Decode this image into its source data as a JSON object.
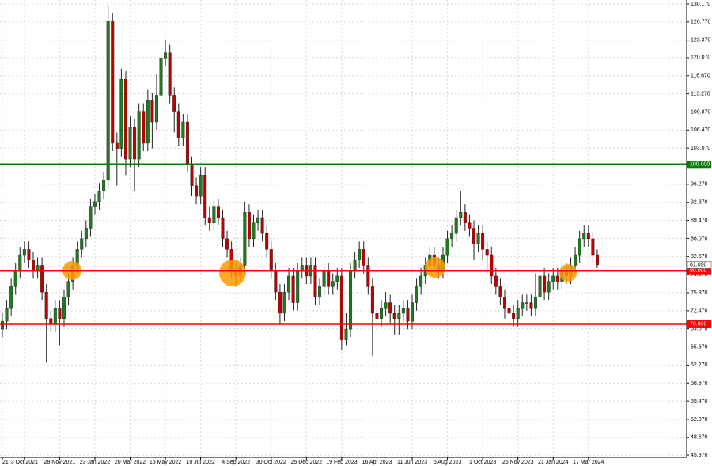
{
  "chart_data": {
    "type": "candlestick",
    "ylim": [
      45.37,
      130.17
    ],
    "yticks": [
      {
        "value": 130.17,
        "label": "130.170"
      },
      {
        "value": 126.77,
        "label": "126.770"
      },
      {
        "value": 123.37,
        "label": "123.370"
      },
      {
        "value": 120.07,
        "label": "120.070"
      },
      {
        "value": 116.67,
        "label": "116.670"
      },
      {
        "value": 113.27,
        "label": "113.270"
      },
      {
        "value": 109.87,
        "label": "109.870"
      },
      {
        "value": 106.47,
        "label": "106.470"
      },
      {
        "value": 103.07,
        "label": "103.070"
      },
      {
        "value": 96.27,
        "label": "96.270"
      },
      {
        "value": 92.87,
        "label": "92.870"
      },
      {
        "value": 89.47,
        "label": "89.470"
      },
      {
        "value": 86.07,
        "label": "86.070"
      },
      {
        "value": 82.67,
        "label": "82.670"
      },
      {
        "value": 79.27,
        "label": "79.270"
      },
      {
        "value": 75.87,
        "label": "75.870"
      },
      {
        "value": 72.47,
        "label": "72.470"
      },
      {
        "value": 69.07,
        "label": "69.070"
      },
      {
        "value": 65.67,
        "label": "65.670"
      },
      {
        "value": 62.27,
        "label": "62.270"
      },
      {
        "value": 58.87,
        "label": "58.870"
      },
      {
        "value": 55.47,
        "label": "55.470"
      },
      {
        "value": 52.07,
        "label": "52.070"
      },
      {
        "value": 48.67,
        "label": "48.670"
      },
      {
        "value": 45.37,
        "label": "45.370"
      }
    ],
    "grid": true,
    "up_color": "#1f7a1f",
    "down_color": "#c00000",
    "categories": [
      "21",
      null,
      null,
      null,
      null,
      "3 Oct 2021",
      null,
      null,
      null,
      null,
      null,
      null,
      null,
      "28 Nov 2021",
      null,
      null,
      null,
      null,
      null,
      null,
      null,
      "23 Jan 2022",
      null,
      null,
      null,
      null,
      null,
      null,
      null,
      "20 Mar 2022",
      null,
      null,
      null,
      null,
      null,
      null,
      null,
      "15 May 2022",
      null,
      null,
      null,
      null,
      null,
      null,
      null,
      "10 Jul 2022",
      null,
      null,
      null,
      null,
      null,
      null,
      null,
      "4 Sep 2022",
      null,
      null,
      null,
      null,
      null,
      null,
      null,
      "30 Oct 2022",
      null,
      null,
      null,
      null,
      null,
      null,
      null,
      "25 Dec 2022",
      null,
      null,
      null,
      null,
      null,
      null,
      null,
      "19 Feb 2023",
      null,
      null,
      null,
      null,
      null,
      null,
      null,
      "16 Apr 2023",
      null,
      null,
      null,
      null,
      null,
      null,
      null,
      "11 Jun 2023",
      null,
      null,
      null,
      null,
      null,
      null,
      null,
      "6 Aug 2023",
      null,
      null,
      null,
      null,
      null,
      null,
      null,
      "1 Oct 2023",
      null,
      null,
      null,
      null,
      null,
      null,
      null,
      "26 Nov 2023",
      null,
      null,
      null,
      null,
      null,
      null,
      null,
      "21 Jan 2024",
      null,
      null,
      null,
      null,
      null,
      null,
      null,
      "17 Mar 2024",
      null,
      null
    ],
    "open": [
      69,
      70.5,
      73,
      77,
      80,
      83,
      84,
      82,
      80,
      81,
      76,
      71,
      70,
      73,
      71,
      75,
      78,
      81,
      84,
      86,
      88,
      92,
      93,
      95,
      97,
      127,
      104,
      103,
      116,
      101,
      107,
      101,
      110,
      104,
      112,
      108,
      113,
      120,
      121,
      113,
      110,
      105,
      108,
      100,
      96,
      94,
      98,
      90,
      89,
      92,
      90,
      86,
      84,
      80,
      79,
      81,
      91,
      86,
      89,
      90,
      87,
      84,
      80,
      76,
      72,
      76,
      79,
      74,
      80,
      81,
      79,
      81,
      75,
      77,
      80,
      77,
      78,
      79,
      67,
      69,
      80,
      82,
      84,
      81,
      77,
      72,
      71,
      73,
      74,
      72,
      71,
      72,
      73,
      70.5,
      74,
      77,
      79,
      81,
      83,
      81,
      80,
      83,
      86,
      87,
      90,
      91,
      89,
      88,
      85,
      87,
      84,
      83,
      79,
      77,
      75,
      73,
      72,
      71,
      73,
      74,
      74,
      73,
      75,
      79,
      76,
      78,
      79,
      78,
      80,
      79,
      81,
      83,
      86,
      87,
      86,
      83
    ],
    "high": [
      72,
      74.5,
      78.5,
      81.5,
      84.5,
      85.5,
      85.5,
      83.5,
      82.5,
      82.5,
      77.5,
      72.5,
      74.5,
      74.5,
      76.5,
      79.5,
      82.5,
      85.5,
      87.5,
      89.5,
      93.5,
      94.5,
      96.5,
      98.5,
      130.1,
      128.5,
      106,
      118,
      117.5,
      109,
      108.5,
      111.5,
      111.5,
      114,
      113.5,
      117,
      121.5,
      123.5,
      122.5,
      114.5,
      111.5,
      109.5,
      109.5,
      101.5,
      97.5,
      99.5,
      99.5,
      92,
      93.5,
      93.5,
      91.5,
      87.5,
      85.5,
      81.5,
      82.5,
      93,
      92.5,
      90.5,
      91.5,
      91.5,
      88.5,
      85.5,
      81.5,
      77.5,
      77.5,
      80.5,
      80.5,
      81.5,
      82.5,
      82.5,
      82.5,
      82.5,
      78.5,
      81.5,
      81.5,
      79.5,
      80.5,
      80.5,
      72,
      81.5,
      83.5,
      85.5,
      85.5,
      82.5,
      78.5,
      73.5,
      74.5,
      76,
      75.5,
      73.5,
      73.5,
      74.5,
      74.5,
      75.5,
      78.5,
      80.5,
      82.5,
      84.5,
      84.5,
      82.5,
      84.5,
      87.5,
      88.5,
      91.5,
      95,
      92.5,
      90.5,
      89.5,
      88.5,
      88.5,
      85.5,
      84.5,
      80.5,
      78.5,
      76.5,
      74.5,
      73.5,
      74.5,
      75.5,
      75.5,
      75.5,
      79.5,
      80.5,
      80.5,
      79.5,
      80.5,
      80.5,
      81.5,
      81.5,
      82.5,
      84.5,
      87.5,
      88.5,
      88.5,
      87.5,
      84
    ],
    "low": [
      67.5,
      69,
      71.5,
      75.5,
      78.5,
      81.5,
      80.5,
      78.5,
      78.5,
      74.5,
      62.7,
      68.5,
      68.5,
      66,
      69.5,
      73.5,
      76.5,
      79.5,
      82.5,
      84.5,
      86.5,
      90.5,
      91.5,
      93.5,
      95.5,
      102.5,
      96,
      101.5,
      98,
      99.5,
      95,
      99.5,
      102.5,
      102.5,
      103,
      106.5,
      111.5,
      118.5,
      111.5,
      106,
      103.5,
      103.5,
      98.5,
      94,
      92.5,
      92.5,
      88.5,
      87.5,
      87.5,
      88.5,
      84.5,
      82.5,
      78.5,
      77,
      77.5,
      79.5,
      84.5,
      84.5,
      87.5,
      85.5,
      82.5,
      78.5,
      74.5,
      70,
      70.5,
      74.5,
      72.5,
      72.5,
      78.5,
      77.5,
      77.5,
      73.5,
      73.5,
      75.5,
      75.5,
      75.5,
      76.5,
      65,
      66,
      67.5,
      78.5,
      80.5,
      79.5,
      75.5,
      64,
      69.5,
      69.5,
      71.5,
      70,
      68,
      68,
      70.5,
      69,
      69,
      72.5,
      75.5,
      77.5,
      79.5,
      79.5,
      78.5,
      78.5,
      81.5,
      84.5,
      85.5,
      88.5,
      87.5,
      86.5,
      82,
      83.5,
      82,
      79.5,
      77.5,
      75.5,
      73.5,
      71,
      69,
      69.5,
      69.5,
      71.5,
      72.5,
      71.5,
      71.5,
      73.5,
      74.5,
      74.5,
      76.5,
      76.5,
      76.5,
      77.5,
      77.5,
      79.5,
      81.5,
      84.5,
      84.5,
      81.5,
      80.5
    ],
    "close": [
      70.5,
      73,
      77,
      80,
      83,
      84,
      82,
      80,
      81,
      76,
      71,
      70,
      73,
      71,
      75,
      78,
      81,
      84,
      86,
      88,
      92,
      93,
      95,
      97,
      127,
      104,
      103,
      116,
      101,
      107,
      101,
      110,
      104,
      112,
      108,
      113,
      120,
      121,
      113,
      110,
      105,
      108,
      100,
      96,
      94,
      98,
      90,
      89,
      92,
      90,
      86,
      84,
      80,
      79,
      81,
      91,
      86,
      89,
      90,
      87,
      84,
      80,
      76,
      72,
      76,
      79,
      74,
      80,
      81,
      79,
      81,
      75,
      77,
      80,
      77,
      78,
      79,
      67,
      69,
      80,
      82,
      84,
      81,
      77,
      72,
      71,
      73,
      74,
      72,
      71,
      72,
      73,
      70.5,
      74,
      77,
      79,
      81,
      83,
      81,
      80,
      83,
      86,
      87,
      90,
      91,
      89,
      88,
      85,
      87,
      84,
      83,
      79,
      77,
      75,
      73,
      72,
      71,
      73,
      74,
      74,
      73,
      75,
      79,
      76,
      78,
      79,
      78,
      80,
      79,
      81,
      83,
      86,
      87,
      86,
      83,
      81.09
    ],
    "last_price_label": "81.090",
    "levels": [
      {
        "value": 100,
        "label": "100.000",
        "color": "#008000"
      },
      {
        "value": 80,
        "label": "80.000",
        "color": "#ff0000"
      },
      {
        "value": 70,
        "label": "70.000",
        "color": "#ff0000"
      }
    ]
  }
}
